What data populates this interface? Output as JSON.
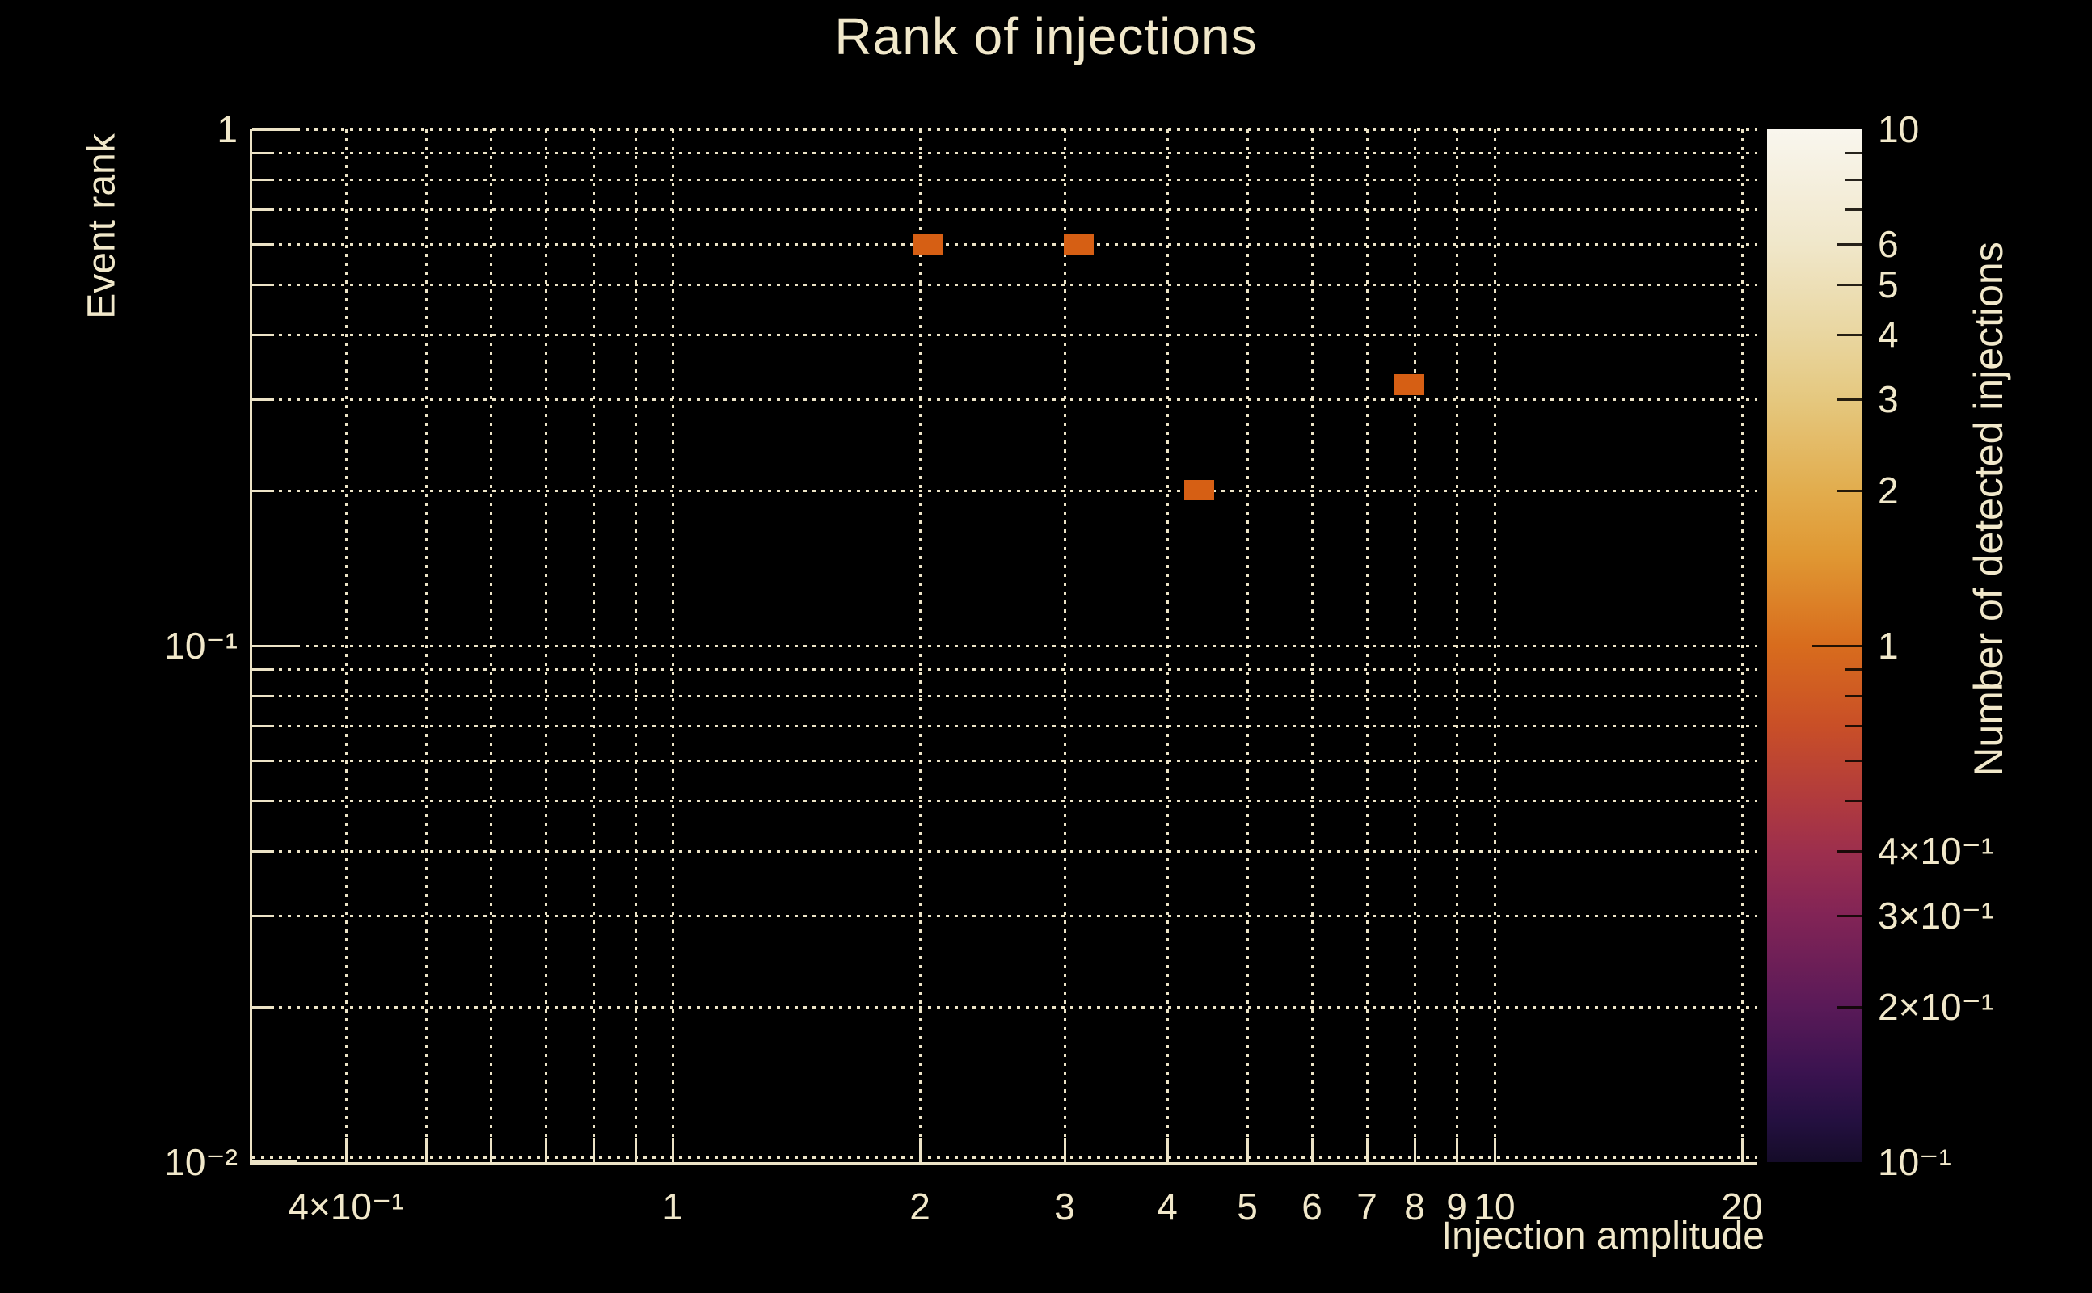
{
  "title": "Rank of injections",
  "colors": {
    "background": "#000000",
    "text": "#f1e8ca",
    "grid": "#ece3c6",
    "bin_fill": "#d65f14"
  },
  "chart_data": {
    "type": "heatmap",
    "title": "Rank of injections",
    "xlabel": "Injection amplitude",
    "ylabel": "Event rank",
    "colorbar_label": "Number of detected injections",
    "x_scale": "log",
    "y_scale": "log",
    "z_scale": "log",
    "x_range": [
      0.3075,
      20.85
    ],
    "y_range": [
      0.01,
      1.0
    ],
    "z_range": [
      0.1,
      10
    ],
    "grid": true,
    "points": [
      {
        "x": 2.04,
        "y": 0.6,
        "count": 1
      },
      {
        "x": 3.12,
        "y": 0.6,
        "count": 1
      },
      {
        "x": 4.37,
        "y": 0.2,
        "count": 1
      },
      {
        "x": 7.87,
        "y": 0.32,
        "count": 1
      }
    ],
    "bin_half_width_dex": 0.0182,
    "bin_half_height_dex": 0.02,
    "x_gridlines": [
      0.4,
      0.5,
      0.6,
      0.7,
      0.8,
      0.9,
      1,
      2,
      3,
      4,
      5,
      6,
      7,
      8,
      9,
      10,
      20
    ],
    "y_gridlines": [
      1,
      0.9,
      0.8,
      0.7,
      0.6,
      0.5,
      0.4,
      0.3,
      0.2,
      0.1,
      0.09,
      0.08,
      0.07,
      0.06,
      0.05,
      0.04,
      0.03,
      0.02,
      0.01
    ],
    "x_tick_labels": [
      {
        "v": 0.4,
        "label": "4×10⁻¹"
      },
      {
        "v": 1,
        "label": "1"
      },
      {
        "v": 2,
        "label": "2"
      },
      {
        "v": 3,
        "label": "3"
      },
      {
        "v": 4,
        "label": "4"
      },
      {
        "v": 5,
        "label": "5"
      },
      {
        "v": 6,
        "label": "6"
      },
      {
        "v": 7,
        "label": "7"
      },
      {
        "v": 8,
        "label": "8"
      },
      {
        "v": 9,
        "label": "9"
      },
      {
        "v": 10,
        "label": "10"
      },
      {
        "v": 20,
        "label": "20"
      }
    ],
    "y_tick_labels": [
      {
        "v": 1,
        "label": "1"
      },
      {
        "v": 0.1,
        "label": "10⁻¹"
      },
      {
        "v": 0.01,
        "label": "10⁻²"
      }
    ],
    "colorbar_tick_labels": [
      {
        "v": 10,
        "label": "10"
      },
      {
        "v": 6,
        "label": "6"
      },
      {
        "v": 5,
        "label": "5"
      },
      {
        "v": 4,
        "label": "4"
      },
      {
        "v": 3,
        "label": "3"
      },
      {
        "v": 2,
        "label": "2"
      },
      {
        "v": 1,
        "label": "1"
      },
      {
        "v": 0.4,
        "label": "4×10⁻¹"
      },
      {
        "v": 0.3,
        "label": "3×10⁻¹"
      },
      {
        "v": 0.2,
        "label": "2×10⁻¹"
      },
      {
        "v": 0.1,
        "label": "10⁻¹"
      }
    ],
    "colorbar_minor_ticks": [
      9,
      8,
      7,
      0.9,
      0.8,
      0.7,
      0.6,
      0.5
    ],
    "colorbar_stops": [
      {
        "v": 10,
        "color": "#f9f6ee"
      },
      {
        "v": 6,
        "color": "#f0e7ca"
      },
      {
        "v": 4,
        "color": "#e9d6a0"
      },
      {
        "v": 3,
        "color": "#e5c87f"
      },
      {
        "v": 2,
        "color": "#e2ad4e"
      },
      {
        "v": 1.5,
        "color": "#e09833"
      },
      {
        "v": 1,
        "color": "#d86c1d"
      },
      {
        "v": 0.7,
        "color": "#c94f27"
      },
      {
        "v": 0.5,
        "color": "#b03a3e"
      },
      {
        "v": 0.4,
        "color": "#9d2f4d"
      },
      {
        "v": 0.3,
        "color": "#822456"
      },
      {
        "v": 0.2,
        "color": "#5a1a58"
      },
      {
        "v": 0.15,
        "color": "#3b1350"
      },
      {
        "v": 0.12,
        "color": "#241040"
      },
      {
        "v": 0.1,
        "color": "#150c29"
      }
    ],
    "count_colors": {
      "1": "#d65f14"
    }
  }
}
